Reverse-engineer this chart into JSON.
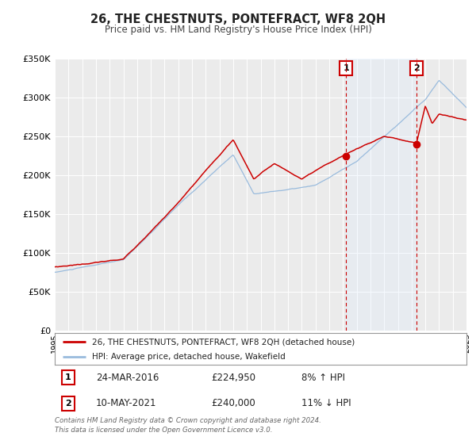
{
  "title": "26, THE CHESTNUTS, PONTEFRACT, WF8 2QH",
  "subtitle": "Price paid vs. HM Land Registry's House Price Index (HPI)",
  "red_label": "26, THE CHESTNUTS, PONTEFRACT, WF8 2QH (detached house)",
  "blue_label": "HPI: Average price, detached house, Wakefield",
  "annotation1_date": "24-MAR-2016",
  "annotation1_price": "£224,950",
  "annotation1_hpi": "8% ↑ HPI",
  "annotation1_year": 2016.22,
  "annotation1_value": 224950,
  "annotation2_date": "10-MAY-2021",
  "annotation2_price": "£240,000",
  "annotation2_hpi": "11% ↓ HPI",
  "annotation2_year": 2021.36,
  "annotation2_value": 240000,
  "footer1": "Contains HM Land Registry data © Crown copyright and database right 2024.",
  "footer2": "This data is licensed under the Open Government Licence v3.0.",
  "ylim": [
    0,
    350000
  ],
  "xlim": [
    1995,
    2025
  ],
  "background_color": "#ffffff",
  "plot_bg_color": "#ebebeb",
  "grid_color": "#ffffff",
  "red_color": "#cc0000",
  "blue_color": "#99bbdd",
  "dashed_color": "#cc0000",
  "shade_color": "#ddeeff"
}
